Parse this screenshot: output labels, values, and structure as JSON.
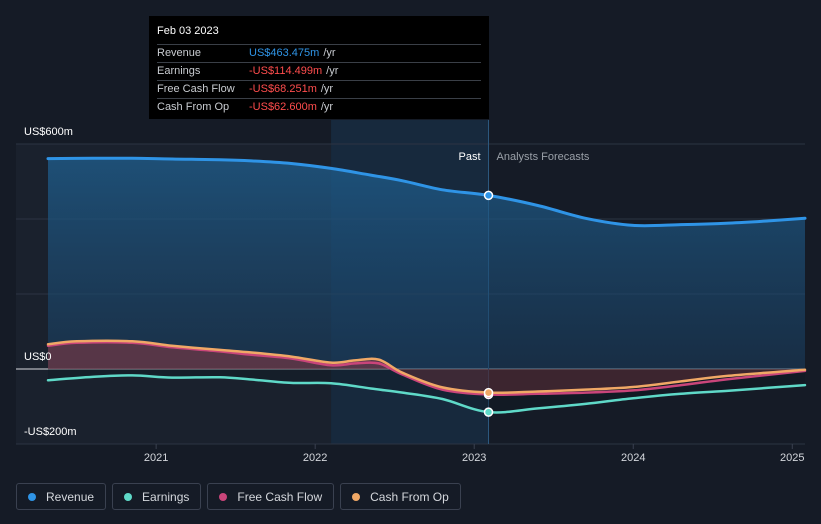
{
  "colors": {
    "background": "#151b26",
    "revenue": "#2f94e6",
    "earnings": "#5fd9c8",
    "free_cash_flow": "#c9457a",
    "cash_from_op": "#f0a866",
    "negative": "#ff4d4d"
  },
  "tooltip": {
    "date": "Feb 03 2023",
    "rows": [
      {
        "label": "Revenue",
        "value": "US$463.475m",
        "unit": "/yr",
        "color": "#2f94e6"
      },
      {
        "label": "Earnings",
        "value": "-US$114.499m",
        "unit": "/yr",
        "color": "#ff4d4d"
      },
      {
        "label": "Free Cash Flow",
        "value": "-US$68.251m",
        "unit": "/yr",
        "color": "#ff4d4d"
      },
      {
        "label": "Cash From Op",
        "value": "-US$62.600m",
        "unit": "/yr",
        "color": "#ff4d4d"
      }
    ]
  },
  "chart_data": {
    "type": "line",
    "y_axis": {
      "labels": [
        "US$600m",
        "US$0",
        "-US$200m"
      ],
      "ylim": [
        -200,
        600
      ],
      "grid": true
    },
    "x_axis": {
      "tick_labels": [
        "2021",
        "2022",
        "2023",
        "2024",
        "2025"
      ],
      "xlim": [
        2020.32,
        2025.08
      ]
    },
    "divider_x": 2023.09,
    "past_label": "Past",
    "forecast_label": "Analysts Forecasts",
    "series": [
      {
        "name": "Revenue",
        "color": "#2f94e6",
        "x": [
          2020.32,
          2020.6,
          2020.85,
          2021.1,
          2021.4,
          2021.6,
          2021.85,
          2022.1,
          2022.35,
          2022.55,
          2022.8,
          2023.09,
          2023.4,
          2023.7,
          2024.0,
          2024.3,
          2024.6,
          2024.85,
          2025.08
        ],
        "y": [
          561,
          562,
          562,
          560,
          558,
          555,
          548,
          535,
          517,
          502,
          478,
          463,
          436,
          402,
          383,
          385,
          389,
          395,
          402
        ]
      },
      {
        "name": "Earnings",
        "color": "#5fd9c8",
        "x": [
          2020.32,
          2020.6,
          2020.85,
          2021.1,
          2021.4,
          2021.6,
          2021.85,
          2022.1,
          2022.35,
          2022.55,
          2022.8,
          2023.09,
          2023.4,
          2023.7,
          2024.0,
          2024.3,
          2024.6,
          2024.85,
          2025.08
        ],
        "y": [
          -30,
          -21,
          -17,
          -23,
          -22,
          -28,
          -37,
          -38,
          -52,
          -63,
          -80,
          -115,
          -105,
          -93,
          -78,
          -66,
          -58,
          -50,
          -43
        ]
      },
      {
        "name": "Free Cash Flow",
        "color": "#c9457a",
        "x": [
          2020.32,
          2020.5,
          2020.85,
          2021.1,
          2021.4,
          2021.6,
          2021.85,
          2022.1,
          2022.25,
          2022.4,
          2022.55,
          2022.8,
          2023.09,
          2023.4,
          2023.7,
          2024.0,
          2024.3,
          2024.6,
          2025.08
        ],
        "y": [
          62,
          70,
          70,
          58,
          47,
          38,
          28,
          10,
          15,
          15,
          -15,
          -55,
          -68,
          -66,
          -63,
          -57,
          -43,
          -27,
          -5
        ]
      },
      {
        "name": "Cash From Op",
        "color": "#f0a866",
        "x": [
          2020.32,
          2020.5,
          2020.85,
          2021.1,
          2021.4,
          2021.6,
          2021.85,
          2022.1,
          2022.25,
          2022.4,
          2022.55,
          2022.8,
          2023.09,
          2023.4,
          2023.7,
          2024.0,
          2024.3,
          2024.6,
          2025.08
        ],
        "y": [
          66,
          74,
          74,
          62,
          51,
          44,
          33,
          17,
          23,
          25,
          -10,
          -49,
          -63,
          -60,
          -55,
          -48,
          -33,
          -18,
          -2
        ]
      }
    ]
  },
  "legend": [
    {
      "label": "Revenue",
      "color": "#2f94e6"
    },
    {
      "label": "Earnings",
      "color": "#5fd9c8"
    },
    {
      "label": "Free Cash Flow",
      "color": "#c9457a"
    },
    {
      "label": "Cash From Op",
      "color": "#f0a866"
    }
  ]
}
